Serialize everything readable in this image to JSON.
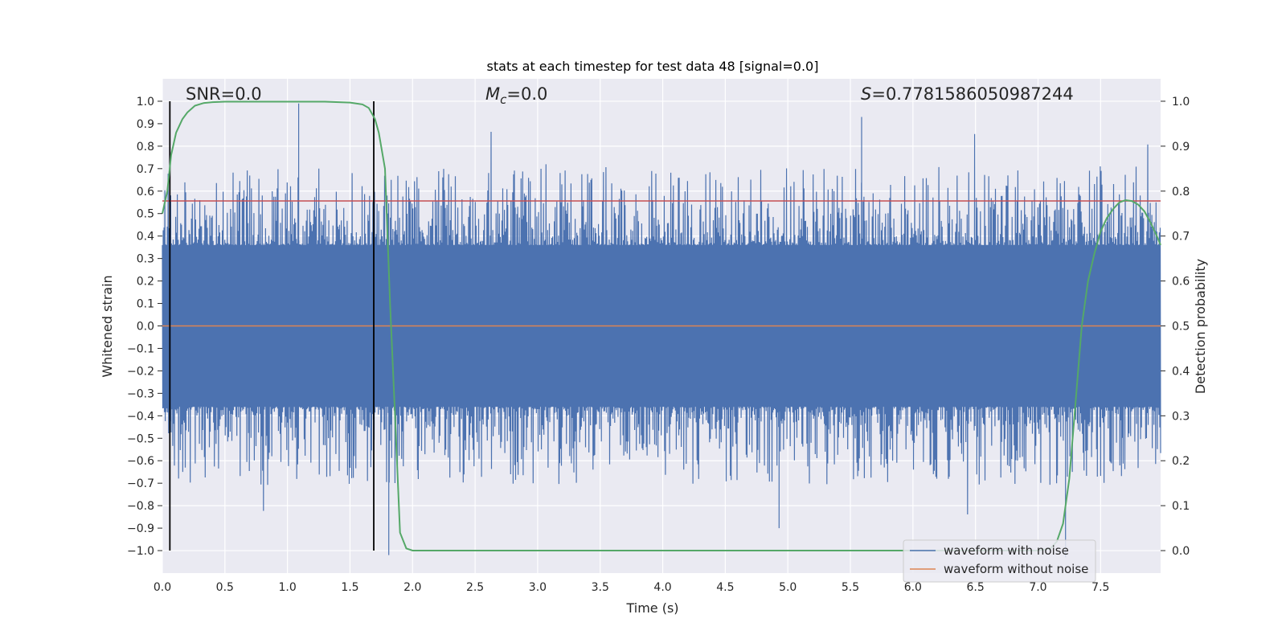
{
  "chart_data": {
    "type": "line",
    "title": "stats at each timestep for test data 48 [signal=0.0]",
    "xlabel": "Time (s)",
    "ylabel": "Whitened strain",
    "ylabel_right": "Detection probability",
    "xlim": [
      0.0,
      7.98
    ],
    "ylim": [
      -1.1,
      1.1
    ],
    "ylim_right": [
      -0.05,
      1.05
    ],
    "xticks": [
      "0.0",
      "0.5",
      "1.0",
      "1.5",
      "2.0",
      "2.5",
      "3.0",
      "3.5",
      "4.0",
      "4.5",
      "5.0",
      "5.5",
      "6.0",
      "6.5",
      "7.0",
      "7.5"
    ],
    "yticks": [
      "1.0",
      "0.9",
      "0.8",
      "0.7",
      "0.6",
      "0.5",
      "0.4",
      "0.3",
      "0.2",
      "0.1",
      "0.0",
      "−0.1",
      "−0.2",
      "−0.3",
      "−0.4",
      "−0.5",
      "−0.6",
      "−0.7",
      "−0.8",
      "−0.9",
      "−1.0"
    ],
    "yticks_right": [
      "1.0",
      "0.9",
      "0.8",
      "0.7",
      "0.6",
      "0.5",
      "0.4",
      "0.3",
      "0.2",
      "0.1",
      "0.0"
    ],
    "annotations": {
      "snr": "SNR=0.0",
      "mc_symbol": "M",
      "mc_sub": "c",
      "mc_value": "=0.0",
      "s_symbol": "S",
      "s_value": "=0.7781586050987244"
    },
    "threshold": 0.7781586050987244,
    "vertical_lines_x": [
      0.06,
      1.69
    ],
    "series": [
      {
        "name": "waveform with noise",
        "color": "#4c72b0",
        "kind": "noise",
        "envelope": 0.36,
        "spikes": [
          [
            1.09,
            0.99
          ],
          [
            1.81,
            -1.02
          ],
          [
            7.22,
            -1.03
          ],
          [
            5.59,
            0.93
          ],
          [
            4.93,
            -0.9
          ]
        ]
      },
      {
        "name": "waveform without noise",
        "color": "#dd8452",
        "kind": "flat",
        "value": 0.0
      },
      {
        "name": "Detection probability",
        "color": "#55a868",
        "axis": "right",
        "x": [
          0.0,
          0.04,
          0.07,
          0.11,
          0.16,
          0.2,
          0.26,
          0.33,
          0.4,
          0.5,
          0.7,
          1.0,
          1.3,
          1.5,
          1.6,
          1.65,
          1.7,
          1.73,
          1.78,
          1.82,
          1.86,
          1.9,
          1.95,
          2.0,
          3.0,
          4.0,
          5.0,
          6.0,
          6.5,
          7.0,
          7.1,
          7.15,
          7.2,
          7.25,
          7.3,
          7.35,
          7.4,
          7.45,
          7.5,
          7.55,
          7.6,
          7.65,
          7.7,
          7.75,
          7.8,
          7.85,
          7.9,
          7.95,
          7.98
        ],
        "y": [
          0.75,
          0.8,
          0.88,
          0.93,
          0.96,
          0.975,
          0.99,
          0.996,
          0.998,
          0.999,
          0.999,
          0.999,
          0.999,
          0.997,
          0.993,
          0.985,
          0.96,
          0.93,
          0.85,
          0.55,
          0.3,
          0.04,
          0.005,
          0.0,
          0.0,
          0.0,
          0.0,
          0.0,
          0.0,
          0.0,
          0.005,
          0.02,
          0.06,
          0.16,
          0.33,
          0.5,
          0.6,
          0.66,
          0.71,
          0.74,
          0.76,
          0.775,
          0.78,
          0.778,
          0.77,
          0.755,
          0.73,
          0.7,
          0.68
        ]
      }
    ],
    "legend": {
      "placement": "lower-right",
      "entries": [
        "waveform with noise",
        "waveform without noise"
      ]
    },
    "colors": {
      "background": "#eaeaf2",
      "grid": "#ffffff",
      "threshold": "#c44e52",
      "vline": "#000000"
    }
  }
}
